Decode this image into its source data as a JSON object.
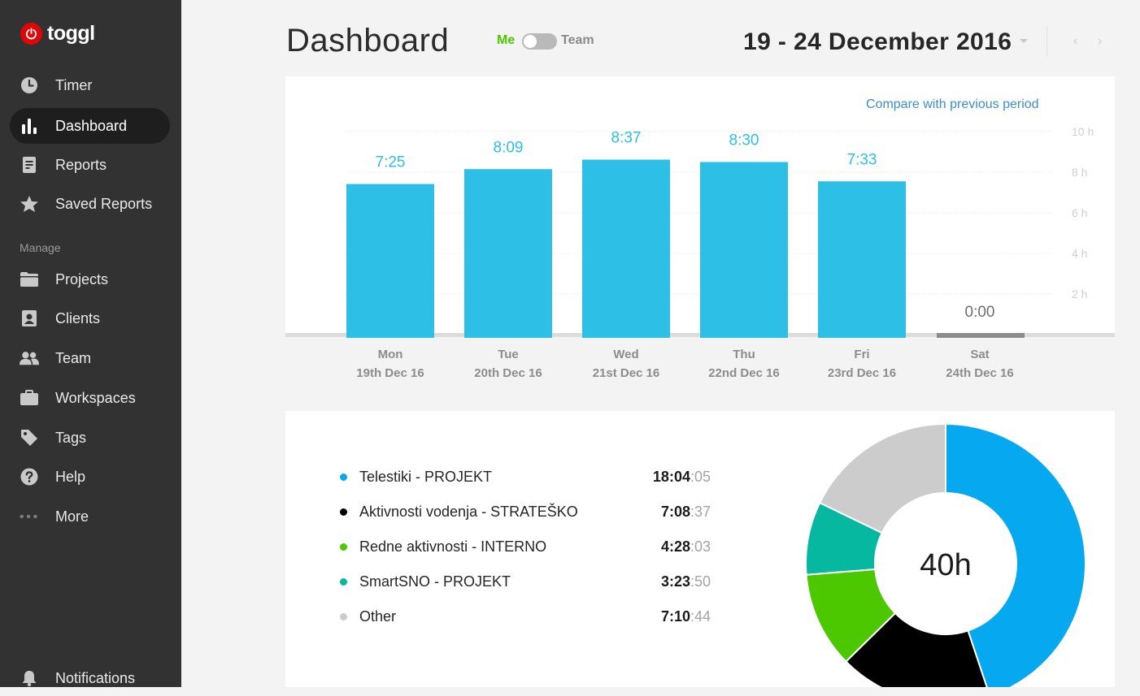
{
  "sidebar": {
    "logo": "toggl",
    "items": [
      {
        "label": "Timer",
        "icon": "clock-icon"
      },
      {
        "label": "Dashboard",
        "icon": "bar-chart-icon",
        "active": true
      },
      {
        "label": "Reports",
        "icon": "document-icon"
      },
      {
        "label": "Saved Reports",
        "icon": "star-icon"
      }
    ],
    "manage_label": "Manage",
    "manage_items": [
      {
        "label": "Projects",
        "icon": "folder-icon"
      },
      {
        "label": "Clients",
        "icon": "contact-card-icon"
      },
      {
        "label": "Team",
        "icon": "people-icon"
      },
      {
        "label": "Workspaces",
        "icon": "briefcase-icon"
      },
      {
        "label": "Tags",
        "icon": "tag-icon"
      },
      {
        "label": "Help",
        "icon": "question-icon"
      },
      {
        "label": "More",
        "icon": "dots-icon"
      }
    ],
    "notifications_label": "Notifications"
  },
  "header": {
    "title": "Dashboard",
    "toggle_me": "Me",
    "toggle_team": "Team",
    "date_range": "19 - 24 December 2016",
    "prev_arrow": "‹",
    "next_arrow": "›"
  },
  "chart_card": {
    "compare_link": "Compare with previous period"
  },
  "colors": {
    "sidebar_bg": "#323232",
    "accent_toggl": "#e20505",
    "bar": "#2dbfe6",
    "link": "#3b8fcf",
    "me_green": "#4bc800"
  },
  "chart_data": {
    "type": "bar",
    "title": "",
    "xlabel": "",
    "ylabel": "",
    "ylim": [
      0,
      10
    ],
    "y_ticks": [
      "10 h",
      "8 h",
      "6 h",
      "4 h",
      "2 h"
    ],
    "y_tick_values": [
      10,
      8,
      6,
      4,
      2
    ],
    "grid": true,
    "categories": [
      {
        "day": "Mon",
        "date": "19th Dec 16"
      },
      {
        "day": "Tue",
        "date": "20th Dec 16"
      },
      {
        "day": "Wed",
        "date": "21st Dec 16"
      },
      {
        "day": "Thu",
        "date": "22nd Dec 16"
      },
      {
        "day": "Fri",
        "date": "23rd Dec 16"
      },
      {
        "day": "Sat",
        "date": "24th Dec 16"
      }
    ],
    "values": [
      7.4167,
      8.15,
      8.6167,
      8.5,
      7.55,
      0
    ],
    "value_labels": [
      "7:25",
      "8:09",
      "8:37",
      "8:30",
      "7:33",
      "0:00"
    ]
  },
  "breakdown": {
    "total": "40h",
    "projects": [
      {
        "name": "Telestiki - PROJEKT",
        "time_hm": "18:04",
        "time_ss": ":05",
        "hours": 18.068,
        "color": "#06a8ef"
      },
      {
        "name": "Aktivnosti vodenja - STRATEŠKO",
        "time_hm": "7:08",
        "time_ss": ":37",
        "hours": 7.144,
        "color": "#000000"
      },
      {
        "name": "Redne aktivnosti - INTERNO",
        "time_hm": "4:28",
        "time_ss": ":03",
        "hours": 4.468,
        "color": "#4bc800"
      },
      {
        "name": "SmartSNO - PROJEKT",
        "time_hm": "3:23",
        "time_ss": ":50",
        "hours": 3.397,
        "color": "#06b8a0"
      },
      {
        "name": "Other",
        "time_hm": "7:10",
        "time_ss": ":44",
        "hours": 7.179,
        "color": "#cccccc"
      }
    ]
  }
}
